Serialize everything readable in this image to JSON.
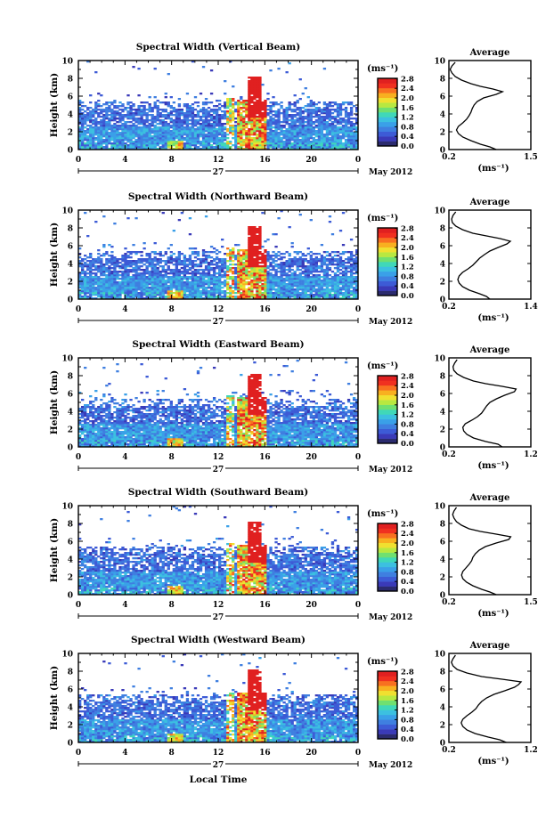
{
  "chart_data": {
    "type": "heatmap",
    "date_label": "May 2012",
    "day_label": "27",
    "xlabel_bottom": "Local Time",
    "ylabel": "Height (km)",
    "x_ticks": [
      "0",
      "4",
      "8",
      "12",
      "16",
      "20",
      "0"
    ],
    "y_ticks": [
      "0",
      "2",
      "4",
      "6",
      "8",
      "10"
    ],
    "xlim": [
      0,
      24
    ],
    "ylim": [
      0,
      10
    ],
    "colorbar": {
      "unit": "(ms⁻¹)",
      "ticks": [
        "0.0",
        "0.4",
        "0.8",
        "1.2",
        "1.6",
        "2.0",
        "2.4",
        "2.8"
      ],
      "range": [
        0,
        2.8
      ],
      "colors": [
        "#2b2b6e",
        "#3a3ab8",
        "#3d5bd6",
        "#3f7fe0",
        "#3aa0e8",
        "#3cc0e0",
        "#40d8b8",
        "#70e070",
        "#b8e840",
        "#f0e030",
        "#f8b020",
        "#f87020",
        "#f03020",
        "#e02020"
      ]
    },
    "average_panel": {
      "title": "Average",
      "xlabel": "(ms⁻¹)"
    },
    "panels": [
      {
        "title": "Spectral Width (Vertical Beam)",
        "avg_ticks": [
          "0.2",
          "1.5"
        ],
        "avg_xlim": [
          0.2,
          1.5
        ],
        "avg_profile": [
          [
            0.0,
            0.95
          ],
          [
            0.3,
            0.85
          ],
          [
            0.6,
            0.7
          ],
          [
            1.0,
            0.55
          ],
          [
            1.4,
            0.42
          ],
          [
            1.8,
            0.35
          ],
          [
            2.2,
            0.32
          ],
          [
            2.6,
            0.35
          ],
          [
            3.0,
            0.42
          ],
          [
            3.4,
            0.48
          ],
          [
            3.8,
            0.52
          ],
          [
            4.2,
            0.55
          ],
          [
            4.6,
            0.57
          ],
          [
            5.0,
            0.6
          ],
          [
            5.4,
            0.65
          ],
          [
            5.8,
            0.75
          ],
          [
            6.2,
            0.95
          ],
          [
            6.5,
            1.05
          ],
          [
            6.8,
            0.9
          ],
          [
            7.1,
            0.7
          ],
          [
            7.4,
            0.55
          ],
          [
            7.8,
            0.4
          ],
          [
            8.2,
            0.3
          ],
          [
            8.6,
            0.25
          ],
          [
            9.0,
            0.22
          ],
          [
            9.4,
            0.25
          ],
          [
            9.8,
            0.3
          ]
        ]
      },
      {
        "title": "Spectral Width (Northward Beam)",
        "avg_ticks": [
          "0.2",
          "1.4"
        ],
        "avg_xlim": [
          0.2,
          1.4
        ],
        "avg_profile": [
          [
            0.0,
            0.8
          ],
          [
            0.3,
            0.75
          ],
          [
            0.6,
            0.65
          ],
          [
            1.0,
            0.5
          ],
          [
            1.4,
            0.4
          ],
          [
            1.8,
            0.35
          ],
          [
            2.2,
            0.33
          ],
          [
            2.6,
            0.35
          ],
          [
            3.0,
            0.4
          ],
          [
            3.4,
            0.48
          ],
          [
            3.8,
            0.55
          ],
          [
            4.2,
            0.6
          ],
          [
            4.6,
            0.65
          ],
          [
            5.0,
            0.72
          ],
          [
            5.4,
            0.8
          ],
          [
            5.8,
            0.92
          ],
          [
            6.2,
            1.05
          ],
          [
            6.5,
            1.1
          ],
          [
            6.8,
            0.95
          ],
          [
            7.1,
            0.75
          ],
          [
            7.4,
            0.55
          ],
          [
            7.8,
            0.4
          ],
          [
            8.2,
            0.3
          ],
          [
            8.6,
            0.25
          ],
          [
            9.0,
            0.24
          ],
          [
            9.4,
            0.26
          ],
          [
            9.8,
            0.3
          ]
        ]
      },
      {
        "title": "Spectral Width (Eastward Beam)",
        "avg_ticks": [
          "0.2",
          "1.2"
        ],
        "avg_xlim": [
          0.2,
          1.2
        ],
        "avg_profile": [
          [
            0.0,
            0.85
          ],
          [
            0.3,
            0.8
          ],
          [
            0.6,
            0.65
          ],
          [
            1.0,
            0.5
          ],
          [
            1.4,
            0.42
          ],
          [
            1.8,
            0.38
          ],
          [
            2.2,
            0.37
          ],
          [
            2.6,
            0.4
          ],
          [
            3.0,
            0.48
          ],
          [
            3.4,
            0.55
          ],
          [
            3.8,
            0.6
          ],
          [
            4.2,
            0.63
          ],
          [
            4.6,
            0.66
          ],
          [
            5.0,
            0.7
          ],
          [
            5.4,
            0.78
          ],
          [
            5.8,
            0.88
          ],
          [
            6.2,
            1.0
          ],
          [
            6.5,
            1.02
          ],
          [
            6.8,
            0.85
          ],
          [
            7.1,
            0.65
          ],
          [
            7.4,
            0.5
          ],
          [
            7.8,
            0.38
          ],
          [
            8.2,
            0.3
          ],
          [
            8.6,
            0.26
          ],
          [
            9.0,
            0.25
          ],
          [
            9.4,
            0.27
          ],
          [
            9.8,
            0.3
          ]
        ]
      },
      {
        "title": "Spectral Width (Southward Beam)",
        "avg_ticks": [
          "0.2",
          "1.5"
        ],
        "avg_xlim": [
          0.2,
          1.5
        ],
        "avg_profile": [
          [
            0.0,
            0.95
          ],
          [
            0.3,
            0.85
          ],
          [
            0.6,
            0.72
          ],
          [
            1.0,
            0.58
          ],
          [
            1.4,
            0.48
          ],
          [
            1.8,
            0.42
          ],
          [
            2.2,
            0.4
          ],
          [
            2.6,
            0.42
          ],
          [
            3.0,
            0.47
          ],
          [
            3.4,
            0.52
          ],
          [
            3.8,
            0.56
          ],
          [
            4.2,
            0.58
          ],
          [
            4.6,
            0.62
          ],
          [
            5.0,
            0.68
          ],
          [
            5.4,
            0.78
          ],
          [
            5.8,
            0.95
          ],
          [
            6.2,
            1.15
          ],
          [
            6.5,
            1.18
          ],
          [
            6.8,
            0.95
          ],
          [
            7.1,
            0.7
          ],
          [
            7.4,
            0.52
          ],
          [
            7.8,
            0.4
          ],
          [
            8.2,
            0.32
          ],
          [
            8.6,
            0.28
          ],
          [
            9.0,
            0.26
          ],
          [
            9.4,
            0.28
          ],
          [
            9.8,
            0.32
          ]
        ]
      },
      {
        "title": "Spectral Width (Westward Beam)",
        "avg_ticks": [
          "0.2",
          "1.2"
        ],
        "avg_xlim": [
          0.2,
          1.2
        ],
        "avg_profile": [
          [
            0.0,
            0.9
          ],
          [
            0.3,
            0.82
          ],
          [
            0.6,
            0.68
          ],
          [
            1.0,
            0.52
          ],
          [
            1.4,
            0.42
          ],
          [
            1.8,
            0.37
          ],
          [
            2.2,
            0.35
          ],
          [
            2.6,
            0.37
          ],
          [
            3.0,
            0.42
          ],
          [
            3.4,
            0.48
          ],
          [
            3.8,
            0.53
          ],
          [
            4.2,
            0.56
          ],
          [
            4.6,
            0.6
          ],
          [
            5.0,
            0.66
          ],
          [
            5.4,
            0.75
          ],
          [
            5.8,
            0.88
          ],
          [
            6.2,
            1.0
          ],
          [
            6.5,
            1.05
          ],
          [
            6.8,
            1.08
          ],
          [
            7.1,
            0.85
          ],
          [
            7.4,
            0.6
          ],
          [
            7.8,
            0.42
          ],
          [
            8.2,
            0.3
          ],
          [
            8.6,
            0.25
          ],
          [
            9.0,
            0.23
          ],
          [
            9.4,
            0.25
          ],
          [
            9.8,
            0.28
          ]
        ]
      }
    ]
  }
}
